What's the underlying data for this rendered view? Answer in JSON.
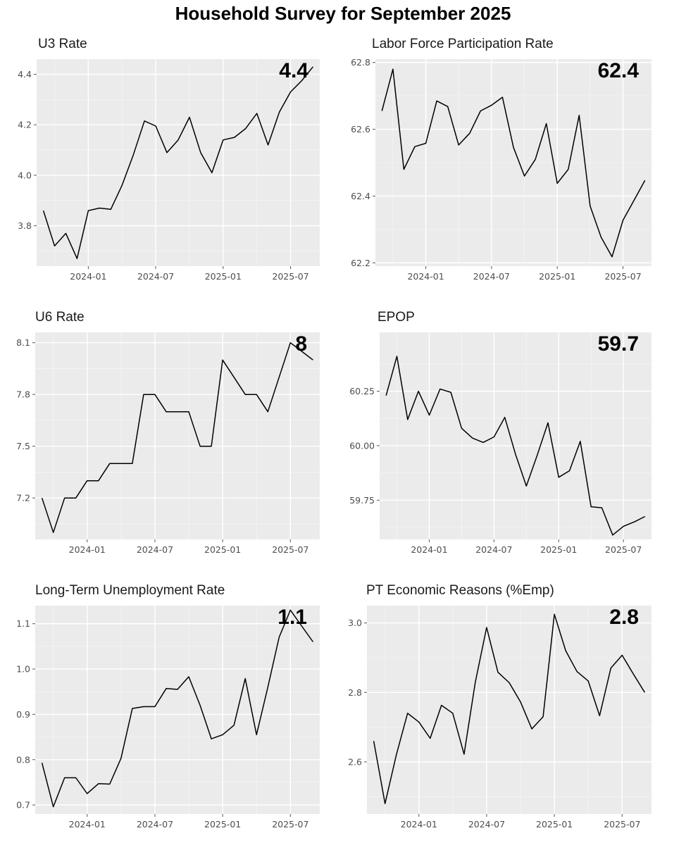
{
  "title": "Household Survey for September 2025",
  "chart_data": [
    {
      "type": "line",
      "title": "U3 Rate",
      "latest_label": "4.4",
      "x": [
        "2023-09",
        "2023-10",
        "2023-11",
        "2023-12",
        "2024-01",
        "2024-02",
        "2024-03",
        "2024-04",
        "2024-05",
        "2024-06",
        "2024-07",
        "2024-08",
        "2024-09",
        "2024-10",
        "2024-11",
        "2024-12",
        "2025-01",
        "2025-02",
        "2025-03",
        "2025-04",
        "2025-05",
        "2025-06",
        "2025-07",
        "2025-08",
        "2025-09"
      ],
      "y": [
        3.86,
        3.72,
        3.77,
        3.67,
        3.86,
        3.87,
        3.865,
        3.96,
        4.08,
        4.215,
        4.195,
        4.09,
        4.14,
        4.23,
        4.09,
        4.01,
        4.14,
        4.15,
        4.185,
        4.245,
        4.12,
        4.25,
        4.33,
        4.375,
        4.43
      ],
      "x_ticks": [
        "2024-01",
        "2024-07",
        "2025-01",
        "2025-07"
      ],
      "y_ticks": [
        3.8,
        4.0,
        4.2,
        4.4
      ],
      "y_tick_labels": [
        "3.8",
        "4.0",
        "4.2",
        "4.4"
      ],
      "ylim": [
        3.64,
        4.46
      ],
      "xlabel": "",
      "ylabel": "",
      "grid": true
    },
    {
      "type": "line",
      "title": "Labor Force Participation Rate",
      "latest_label": "62.4",
      "x": [
        "2023-09",
        "2023-10",
        "2023-11",
        "2023-12",
        "2024-01",
        "2024-02",
        "2024-03",
        "2024-04",
        "2024-05",
        "2024-06",
        "2024-07",
        "2024-08",
        "2024-09",
        "2024-10",
        "2024-11",
        "2024-12",
        "2025-01",
        "2025-02",
        "2025-03",
        "2025-04",
        "2025-05",
        "2025-06",
        "2025-07",
        "2025-08",
        "2025-09"
      ],
      "y": [
        62.655,
        62.78,
        62.48,
        62.548,
        62.558,
        62.685,
        62.668,
        62.553,
        62.588,
        62.655,
        62.672,
        62.696,
        62.546,
        62.46,
        62.51,
        62.617,
        62.438,
        62.48,
        62.642,
        62.37,
        62.277,
        62.218,
        62.328,
        62.387,
        62.447
      ],
      "x_ticks": [
        "2024-01",
        "2024-07",
        "2025-01",
        "2025-07"
      ],
      "y_ticks": [
        62.2,
        62.4,
        62.6,
        62.8
      ],
      "y_tick_labels": [
        "62.2",
        "62.4",
        "62.6",
        "62.8"
      ],
      "ylim": [
        62.19,
        62.81
      ],
      "xlabel": "",
      "ylabel": "",
      "grid": true
    },
    {
      "type": "line",
      "title": "U6 Rate",
      "latest_label": "8",
      "x": [
        "2023-09",
        "2023-10",
        "2023-11",
        "2023-12",
        "2024-01",
        "2024-02",
        "2024-03",
        "2024-04",
        "2024-05",
        "2024-06",
        "2024-07",
        "2024-08",
        "2024-09",
        "2024-10",
        "2024-11",
        "2024-12",
        "2025-01",
        "2025-02",
        "2025-03",
        "2025-04",
        "2025-05",
        "2025-06",
        "2025-07",
        "2025-08",
        "2025-09"
      ],
      "y": [
        7.2,
        7.0,
        7.2,
        7.2,
        7.3,
        7.3,
        7.4,
        7.4,
        7.4,
        7.8,
        7.8,
        7.7,
        7.7,
        7.7,
        7.5,
        7.5,
        8.0,
        7.9,
        7.8,
        7.8,
        7.7,
        7.9,
        8.1,
        8.05,
        8.0
      ],
      "x_ticks": [
        "2024-01",
        "2024-07",
        "2025-01",
        "2025-07"
      ],
      "y_ticks": [
        7.2,
        7.5,
        7.8,
        8.1
      ],
      "y_tick_labels": [
        "7.2",
        "7.5",
        "7.8",
        "8.1"
      ],
      "ylim": [
        6.96,
        8.16
      ],
      "xlabel": "",
      "ylabel": "",
      "grid": true
    },
    {
      "type": "line",
      "title": "EPOP",
      "latest_label": "59.7",
      "x": [
        "2023-09",
        "2023-10",
        "2023-11",
        "2023-12",
        "2024-01",
        "2024-02",
        "2024-03",
        "2024-04",
        "2024-05",
        "2024-06",
        "2024-07",
        "2024-08",
        "2024-09",
        "2024-10",
        "2024-11",
        "2024-12",
        "2025-01",
        "2025-02",
        "2025-03",
        "2025-04",
        "2025-05",
        "2025-06",
        "2025-07",
        "2025-08",
        "2025-09"
      ],
      "y": [
        60.23,
        60.41,
        60.12,
        60.25,
        60.14,
        60.26,
        60.245,
        60.08,
        60.035,
        60.015,
        60.04,
        60.13,
        59.96,
        59.815,
        59.955,
        60.105,
        59.855,
        59.885,
        60.02,
        59.72,
        59.715,
        59.59,
        59.63,
        59.65,
        59.675
      ],
      "x_ticks": [
        "2024-01",
        "2024-07",
        "2025-01",
        "2025-07"
      ],
      "y_ticks": [
        59.75,
        60.0,
        60.25
      ],
      "y_tick_labels": [
        "59.75",
        "60.00",
        "60.25"
      ],
      "ylim": [
        59.57,
        60.52
      ],
      "xlabel": "",
      "ylabel": "",
      "grid": true
    },
    {
      "type": "line",
      "title": "Long-Term Unemployment Rate",
      "latest_label": "1.1",
      "x": [
        "2023-09",
        "2023-10",
        "2023-11",
        "2023-12",
        "2024-01",
        "2024-02",
        "2024-03",
        "2024-04",
        "2024-05",
        "2024-06",
        "2024-07",
        "2024-08",
        "2024-09",
        "2024-10",
        "2024-11",
        "2024-12",
        "2025-01",
        "2025-02",
        "2025-03",
        "2025-04",
        "2025-05",
        "2025-06",
        "2025-07",
        "2025-08",
        "2025-09"
      ],
      "y": [
        0.793,
        0.696,
        0.76,
        0.76,
        0.725,
        0.747,
        0.746,
        0.803,
        0.913,
        0.917,
        0.917,
        0.957,
        0.955,
        0.983,
        0.92,
        0.846,
        0.855,
        0.876,
        0.979,
        0.855,
        0.96,
        1.07,
        1.13,
        1.095,
        1.06
      ],
      "x_ticks": [
        "2024-01",
        "2024-07",
        "2025-01",
        "2025-07"
      ],
      "y_ticks": [
        0.7,
        0.8,
        0.9,
        1.0,
        1.1
      ],
      "y_tick_labels": [
        "0.7",
        "0.8",
        "0.9",
        "1.0",
        "1.1"
      ],
      "ylim": [
        0.68,
        1.14
      ],
      "xlabel": "",
      "ylabel": "",
      "grid": true
    },
    {
      "type": "line",
      "title": "PT Economic Reasons (%Emp)",
      "latest_label": "2.8",
      "x": [
        "2023-09",
        "2023-10",
        "2023-11",
        "2023-12",
        "2024-01",
        "2024-02",
        "2024-03",
        "2024-04",
        "2024-05",
        "2024-06",
        "2024-07",
        "2024-08",
        "2024-09",
        "2024-10",
        "2024-11",
        "2024-12",
        "2025-01",
        "2025-02",
        "2025-03",
        "2025-04",
        "2025-05",
        "2025-06",
        "2025-07",
        "2025-08",
        "2025-09"
      ],
      "y": [
        2.66,
        2.48,
        2.62,
        2.74,
        2.715,
        2.668,
        2.763,
        2.74,
        2.622,
        2.83,
        2.987,
        2.858,
        2.828,
        2.773,
        2.695,
        2.73,
        3.025,
        2.92,
        2.86,
        2.833,
        2.733,
        2.87,
        2.907,
        2.853,
        2.8
      ],
      "x_ticks": [
        "2024-01",
        "2024-07",
        "2025-01",
        "2025-07"
      ],
      "y_ticks": [
        2.6,
        2.8,
        3.0
      ],
      "y_tick_labels": [
        "2.6",
        "2.8",
        "3.0"
      ],
      "ylim": [
        2.45,
        3.05
      ],
      "xlabel": "",
      "ylabel": "",
      "grid": true
    }
  ]
}
